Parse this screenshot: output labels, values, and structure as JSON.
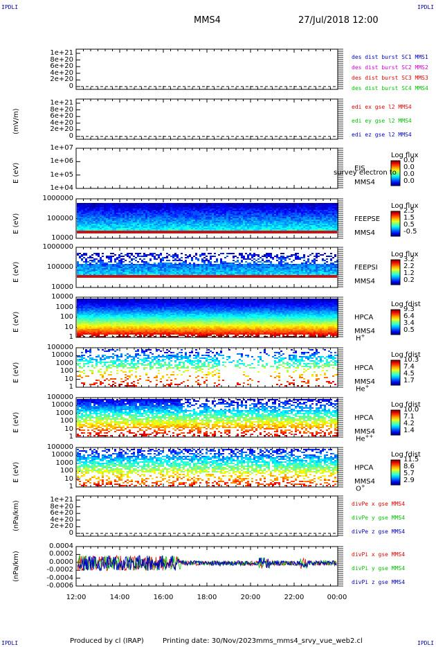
{
  "header": {
    "corner_label": "IPDLI",
    "mission": "MMS4",
    "datetime": "27/Jul/2018 12:00"
  },
  "footer": {
    "produced": "Produced by cl (IRAP)",
    "printed": "Printing date: 30/Nov/2023",
    "script": "mms_mms4_srvy_vue_web2.cl"
  },
  "x_axis": {
    "ticks": [
      "12:00",
      "14:00",
      "16:00",
      "18:00",
      "20:00",
      "22:00",
      "00:00"
    ]
  },
  "colors": {
    "red": "#e00000",
    "green": "#00c000",
    "blue": "#0000c0",
    "magenta": "#d000d0"
  },
  "chart_data": [
    {
      "type": "line",
      "panel": "des-dist",
      "ylabel": "",
      "yticks": [
        "1e+21",
        "8e+20",
        "6e+20",
        "4e+20",
        "2e+20",
        "0"
      ],
      "legend": [
        {
          "text": "des dist burst SC1 MMS1",
          "color": "#0000c0"
        },
        {
          "text": "des dist burst SC2 MMS2",
          "color": "#d000d0"
        },
        {
          "text": "des dist burst SC3 MMS3",
          "color": "#e00000"
        },
        {
          "text": "des dist burst SC4 MMS4",
          "color": "#00c000"
        }
      ]
    },
    {
      "type": "line",
      "panel": "edi",
      "ylabel": "(mV/m)",
      "yticks": [
        "1e+21",
        "8e+20",
        "6e+20",
        "4e+20",
        "2e+20",
        "0"
      ],
      "legend": [
        {
          "text": "edi ex gse l2 MMS4",
          "color": "#e00000"
        },
        {
          "text": "edi ey gse l2 MMS4",
          "color": "#00c000"
        },
        {
          "text": "edi ez gse l2 MMS4",
          "color": "#0000c0"
        }
      ]
    },
    {
      "type": "heatmap",
      "panel": "eis",
      "ylabel": "E (eV)",
      "yticks": [
        "1e+07",
        "1e+06",
        "1e+05",
        "1e+04"
      ],
      "instrument": [
        "EIS",
        "MMS4"
      ],
      "overlay_text": "survey electron to",
      "colorbar": {
        "title": "Log flux",
        "values": [
          "0.0",
          "0.0",
          "0.0",
          "0.0"
        ]
      }
    },
    {
      "type": "heatmap",
      "panel": "feepse",
      "ylabel": "E (eV)",
      "yticks": [
        "1000000",
        "100000",
        "10000"
      ],
      "instrument": [
        "FEEPSE",
        "MMS4"
      ],
      "colorbar": {
        "title": "Log flux",
        "values": [
          "2.5",
          "1.5",
          "0.5",
          "-0.5"
        ]
      }
    },
    {
      "type": "heatmap",
      "panel": "feepsi",
      "ylabel": "E (eV)",
      "yticks": [
        "1000000",
        "100000",
        "10000"
      ],
      "instrument": [
        "FEEPSI",
        "MMS4"
      ],
      "colorbar": {
        "title": "Log flux",
        "values": [
          "3.2",
          "2.2",
          "1.2",
          "0.2"
        ]
      }
    },
    {
      "type": "heatmap",
      "panel": "hpca-h",
      "ylabel": "E (eV)",
      "yticks": [
        "10000",
        "1000",
        "100",
        "10",
        "1"
      ],
      "instrument": [
        "HPCA",
        "MMS4"
      ],
      "species": "H",
      "species_sup": "+",
      "colorbar": {
        "title": "Log fdist",
        "values": [
          "9.3",
          "6.4",
          "3.4",
          "0.5"
        ]
      }
    },
    {
      "type": "heatmap",
      "panel": "hpca-he",
      "ylabel": "E (eV)",
      "yticks": [
        "100000",
        "10000",
        "1000",
        "100",
        "10",
        "1"
      ],
      "instrument": [
        "HPCA",
        "MMS4"
      ],
      "species": "He",
      "species_sup": "+",
      "colorbar": {
        "title": "Log fdist",
        "values": [
          "10.3",
          "7.4",
          "4.5",
          "1.7"
        ]
      }
    },
    {
      "type": "heatmap",
      "panel": "hpca-he2",
      "ylabel": "E (eV)",
      "yticks": [
        "100000",
        "10000",
        "1000",
        "100",
        "10",
        "1"
      ],
      "instrument": [
        "HPCA",
        "MMS4"
      ],
      "species": "He",
      "species_sup": "++",
      "colorbar": {
        "title": "Log fdist",
        "values": [
          "10.0",
          "7.1",
          "4.2",
          "1.4"
        ]
      }
    },
    {
      "type": "heatmap",
      "panel": "hpca-o",
      "ylabel": "E (eV)",
      "yticks": [
        "100000",
        "10000",
        "1000",
        "100",
        "10",
        "1"
      ],
      "instrument": [
        "HPCA",
        "MMS4"
      ],
      "species": "O",
      "species_sup": "+",
      "colorbar": {
        "title": "Log fdist",
        "values": [
          "11.5",
          "8.6",
          "5.7",
          "2.9"
        ]
      }
    },
    {
      "type": "line",
      "panel": "divpe",
      "ylabel": "(nPa/km)",
      "yticks": [
        "1e+21",
        "8e+20",
        "6e+20",
        "4e+20",
        "2e+20",
        "0"
      ],
      "legend": [
        {
          "text": "divPe x gse MMS4",
          "color": "#e00000"
        },
        {
          "text": "divPe y gse MMS4",
          "color": "#00c000"
        },
        {
          "text": "divPe z gse MMS4",
          "color": "#0000c0"
        }
      ]
    },
    {
      "type": "line",
      "panel": "divpi",
      "ylabel": "(nPa/km)",
      "yticks": [
        "0.0004",
        "0.0002",
        "0.0000",
        "-0.0002",
        "-0.0004",
        "-0.0006"
      ],
      "ylim": [
        -0.0006,
        0.0004
      ],
      "legend": [
        {
          "text": "divPi x gse MMS4",
          "color": "#e00000"
        },
        {
          "text": "divPi y gse MMS4",
          "color": "#00c000"
        },
        {
          "text": "divPi z gse MMS4",
          "color": "#0000c0"
        }
      ]
    }
  ]
}
